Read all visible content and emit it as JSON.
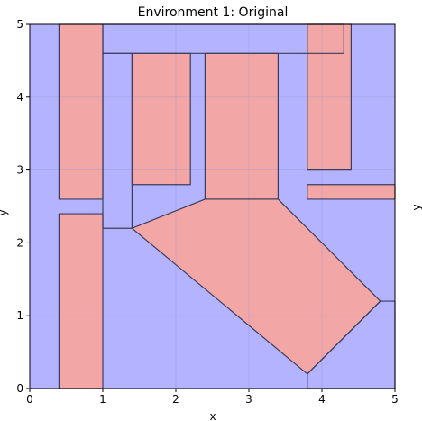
{
  "chart_data": {
    "type": "polygon-map",
    "title": "Environment 1: Original",
    "xlabel": "x",
    "ylabel": "y",
    "xlim": [
      0,
      5
    ],
    "ylim": [
      0,
      5
    ],
    "x_ticks": [
      0,
      1,
      2,
      3,
      4,
      5
    ],
    "y_ticks": [
      0,
      1,
      2,
      3,
      4,
      5
    ],
    "grid": true,
    "clipped_neighbor_label": "y",
    "colors": {
      "free_space": "#b3b3ff",
      "obstacle": "#f2a6a6",
      "edge": "#3d3d5c",
      "grid": "#9a9ad6"
    },
    "free_region": {
      "name": "free-space",
      "points": [
        [
          0,
          0
        ],
        [
          5,
          0
        ],
        [
          5,
          5
        ],
        [
          0,
          5
        ]
      ]
    },
    "cells": [
      {
        "name": "left-strip-upper",
        "points": [
          [
            0.4,
            2.6
          ],
          [
            1,
            2.6
          ],
          [
            1,
            5
          ],
          [
            0.4,
            5
          ]
        ]
      },
      {
        "name": "left-strip-lower",
        "points": [
          [
            0.4,
            0
          ],
          [
            1,
            0
          ],
          [
            1,
            2.4
          ],
          [
            0.4,
            2.4
          ]
        ]
      },
      {
        "name": "left-corridor",
        "points": [
          [
            1,
            2.2
          ],
          [
            1.4,
            2.2
          ],
          [
            1.4,
            4.6
          ],
          [
            1,
            4.6
          ]
        ]
      },
      {
        "name": "top-band",
        "points": [
          [
            1,
            4.6
          ],
          [
            4.3,
            4.6
          ],
          [
            4.3,
            5
          ],
          [
            1,
            5
          ]
        ]
      },
      {
        "name": "box-a",
        "points": [
          [
            1.4,
            2.8
          ],
          [
            2.2,
            2.8
          ],
          [
            2.2,
            4.6
          ],
          [
            1.4,
            4.6
          ]
        ]
      },
      {
        "name": "box-b",
        "points": [
          [
            2.4,
            2.6
          ],
          [
            3.4,
            2.6
          ],
          [
            3.4,
            4.6
          ],
          [
            2.4,
            4.6
          ]
        ]
      },
      {
        "name": "central-region",
        "points": [
          [
            1.4,
            2.2
          ],
          [
            2.4,
            2.6
          ],
          [
            3.4,
            2.6
          ],
          [
            4.8,
            1.2
          ],
          [
            3.8,
            0.2
          ]
        ]
      },
      {
        "name": "right-strip-top",
        "points": [
          [
            3.8,
            3.0
          ],
          [
            4.4,
            3.0
          ],
          [
            4.4,
            5
          ],
          [
            3.8,
            5
          ]
        ]
      },
      {
        "name": "right-strip-band",
        "points": [
          [
            3.8,
            2.6
          ],
          [
            5,
            2.6
          ],
          [
            5,
            2.8
          ],
          [
            3.8,
            2.8
          ]
        ]
      },
      {
        "name": "lower-right-region",
        "points": [
          [
            3.8,
            0
          ],
          [
            5,
            0
          ],
          [
            5,
            1.2
          ],
          [
            4.8,
            1.2
          ],
          [
            3.8,
            0.2
          ]
        ]
      }
    ],
    "obstacles": [
      {
        "name": "left-strip-upper",
        "points": [
          [
            0.4,
            2.6
          ],
          [
            1,
            2.6
          ],
          [
            1,
            5
          ],
          [
            0.4,
            5
          ]
        ]
      },
      {
        "name": "left-strip-lower",
        "points": [
          [
            0.4,
            0
          ],
          [
            1,
            0
          ],
          [
            1,
            2.4
          ],
          [
            0.4,
            2.4
          ]
        ]
      },
      {
        "name": "box-a",
        "points": [
          [
            1.4,
            2.8
          ],
          [
            2.2,
            2.8
          ],
          [
            2.2,
            4.6
          ],
          [
            1.4,
            4.6
          ]
        ]
      },
      {
        "name": "central-region",
        "points": [
          [
            1.4,
            2.2
          ],
          [
            2.4,
            2.6
          ],
          [
            2.4,
            4.6
          ],
          [
            3.4,
            4.6
          ],
          [
            3.4,
            2.6
          ],
          [
            4.8,
            1.2
          ],
          [
            3.8,
            0.2
          ]
        ]
      },
      {
        "name": "right-strip-top",
        "points": [
          [
            3.8,
            3.0
          ],
          [
            4.4,
            3.0
          ],
          [
            4.4,
            5
          ],
          [
            3.8,
            5
          ]
        ]
      },
      {
        "name": "right-strip-band",
        "points": [
          [
            3.8,
            2.6
          ],
          [
            5,
            2.6
          ],
          [
            5,
            2.8
          ],
          [
            3.8,
            2.8
          ]
        ]
      }
    ]
  }
}
